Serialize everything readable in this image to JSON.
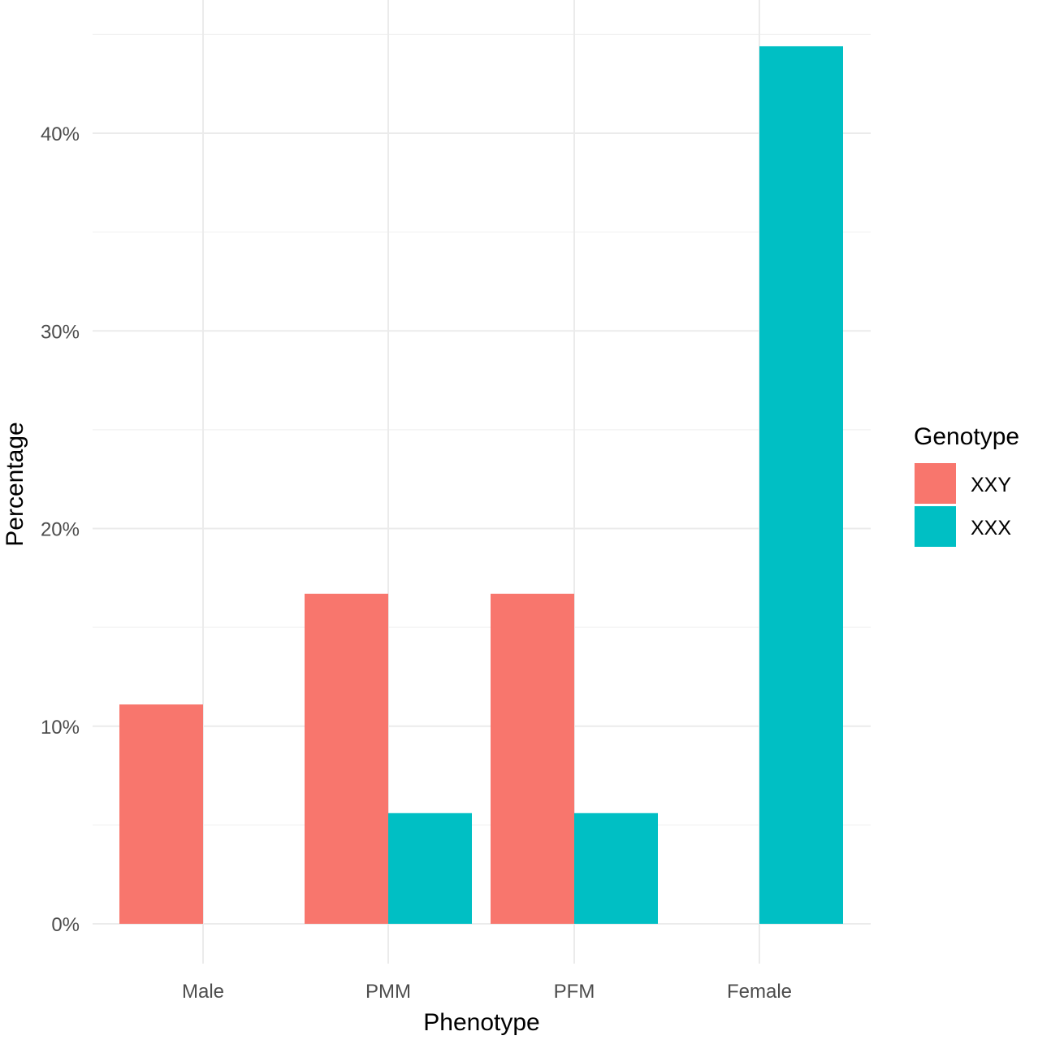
{
  "chart_data": {
    "type": "bar",
    "categories": [
      "Male",
      "PMM",
      "PFM",
      "Female"
    ],
    "series": [
      {
        "name": "XXY",
        "color": "#F8766D",
        "values": [
          11.1,
          16.7,
          16.7,
          0
        ]
      },
      {
        "name": "XXX",
        "color": "#00BFC4",
        "values": [
          0,
          5.6,
          5.6,
          44.4
        ]
      }
    ],
    "xlabel": "Phenotype",
    "ylabel": "Percentage",
    "ylim": [
      0,
      44.4
    ],
    "yticks": [
      0,
      10,
      20,
      30,
      40
    ],
    "ytick_labels": [
      "0%",
      "10%",
      "20%",
      "30%",
      "40%"
    ],
    "grid": true,
    "legend": {
      "title": "Genotype",
      "placement": "right"
    }
  }
}
